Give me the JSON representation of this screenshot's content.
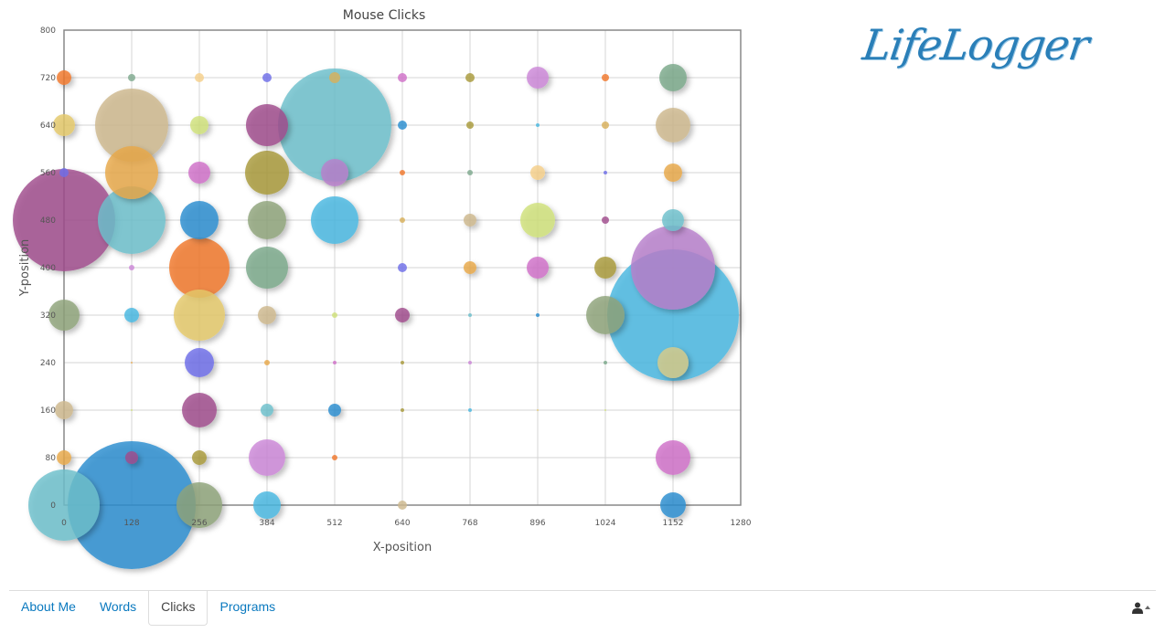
{
  "nav": {
    "tabs": [
      {
        "label": "About Me",
        "active": false
      },
      {
        "label": "Words",
        "active": false
      },
      {
        "label": "Clicks",
        "active": true
      },
      {
        "label": "Programs",
        "active": false
      }
    ],
    "user_icon": "user-icon"
  },
  "logo": {
    "text": "LifeLogger",
    "color": "#2a7fb8"
  },
  "chart_data": {
    "type": "scatter",
    "title": "Mouse Clicks",
    "xlabel": "X-position",
    "ylabel": "Y-position",
    "xlim": [
      0,
      1280
    ],
    "ylim": [
      0,
      800
    ],
    "xticks": [
      0,
      128,
      256,
      384,
      512,
      640,
      768,
      896,
      1024,
      1152,
      1280
    ],
    "yticks": [
      0,
      80,
      160,
      240,
      320,
      400,
      480,
      560,
      640,
      720,
      800
    ],
    "grid": true,
    "points": [
      {
        "x": 0,
        "y": 720,
        "size": 8,
        "color": "#f0782c"
      },
      {
        "x": 128,
        "y": 720,
        "size": 4,
        "color": "#7faa8f"
      },
      {
        "x": 256,
        "y": 720,
        "size": 5,
        "color": "#f5cf8a"
      },
      {
        "x": 384,
        "y": 720,
        "size": 5,
        "color": "#6e6ee8"
      },
      {
        "x": 512,
        "y": 720,
        "size": 6,
        "color": "#d8b05a"
      },
      {
        "x": 640,
        "y": 720,
        "size": 5,
        "color": "#d070c8"
      },
      {
        "x": 768,
        "y": 720,
        "size": 5,
        "color": "#a89a3a"
      },
      {
        "x": 896,
        "y": 720,
        "size": 12,
        "color": "#cc88d8"
      },
      {
        "x": 1024,
        "y": 720,
        "size": 4,
        "color": "#f0782c"
      },
      {
        "x": 1152,
        "y": 720,
        "size": 15,
        "color": "#7aa88a"
      },
      {
        "x": 0,
        "y": 640,
        "size": 12,
        "color": "#e4c86a"
      },
      {
        "x": 128,
        "y": 640,
        "size": 40,
        "color": "#cdb88e"
      },
      {
        "x": 256,
        "y": 640,
        "size": 10,
        "color": "#cfe07a"
      },
      {
        "x": 384,
        "y": 640,
        "size": 23,
        "color": "#a04c8c"
      },
      {
        "x": 512,
        "y": 640,
        "size": 62,
        "color": "#6ec0cc"
      },
      {
        "x": 640,
        "y": 640,
        "size": 5,
        "color": "#2a8ed0"
      },
      {
        "x": 768,
        "y": 640,
        "size": 4,
        "color": "#a89a3a"
      },
      {
        "x": 896,
        "y": 640,
        "size": 2,
        "color": "#4ab8e0"
      },
      {
        "x": 1024,
        "y": 640,
        "size": 4,
        "color": "#d8b05a"
      },
      {
        "x": 1152,
        "y": 640,
        "size": 19,
        "color": "#cdb88e"
      },
      {
        "x": 0,
        "y": 560,
        "size": 5,
        "color": "#6e6ee8"
      },
      {
        "x": 128,
        "y": 560,
        "size": 29,
        "color": "#e8a84a"
      },
      {
        "x": 256,
        "y": 560,
        "size": 12,
        "color": "#d070c8"
      },
      {
        "x": 384,
        "y": 560,
        "size": 24,
        "color": "#a89a3a"
      },
      {
        "x": 512,
        "y": 560,
        "size": 15,
        "color": "#b880cc"
      },
      {
        "x": 640,
        "y": 560,
        "size": 3,
        "color": "#f0782c"
      },
      {
        "x": 768,
        "y": 560,
        "size": 3,
        "color": "#7faa8f"
      },
      {
        "x": 896,
        "y": 560,
        "size": 8,
        "color": "#f5cf8a"
      },
      {
        "x": 1024,
        "y": 560,
        "size": 2,
        "color": "#6e6ee8"
      },
      {
        "x": 1152,
        "y": 560,
        "size": 10,
        "color": "#e8a84a"
      },
      {
        "x": 0,
        "y": 480,
        "size": 56,
        "color": "#a04c8c"
      },
      {
        "x": 128,
        "y": 480,
        "size": 37,
        "color": "#6ec0cc"
      },
      {
        "x": 256,
        "y": 480,
        "size": 21,
        "color": "#2a8ed0"
      },
      {
        "x": 384,
        "y": 480,
        "size": 21,
        "color": "#8fa47a"
      },
      {
        "x": 512,
        "y": 480,
        "size": 26,
        "color": "#4ab8e0"
      },
      {
        "x": 640,
        "y": 480,
        "size": 3,
        "color": "#d8b05a"
      },
      {
        "x": 768,
        "y": 480,
        "size": 7,
        "color": "#cdb88e"
      },
      {
        "x": 896,
        "y": 480,
        "size": 19,
        "color": "#cfe07a"
      },
      {
        "x": 1024,
        "y": 480,
        "size": 4,
        "color": "#a04c8c"
      },
      {
        "x": 1152,
        "y": 480,
        "size": 12,
        "color": "#6ec0cc"
      },
      {
        "x": 128,
        "y": 400,
        "size": 3,
        "color": "#cc88d8"
      },
      {
        "x": 256,
        "y": 400,
        "size": 33,
        "color": "#f0782c"
      },
      {
        "x": 384,
        "y": 400,
        "size": 23,
        "color": "#7aa88a"
      },
      {
        "x": 640,
        "y": 400,
        "size": 5,
        "color": "#6e6ee8"
      },
      {
        "x": 768,
        "y": 400,
        "size": 7,
        "color": "#e8a84a"
      },
      {
        "x": 896,
        "y": 400,
        "size": 12,
        "color": "#d070c8"
      },
      {
        "x": 1024,
        "y": 400,
        "size": 12,
        "color": "#a89a3a"
      },
      {
        "x": 1152,
        "y": 400,
        "size": 46,
        "color": "#b880cc"
      },
      {
        "x": 0,
        "y": 320,
        "size": 17,
        "color": "#8fa47a"
      },
      {
        "x": 128,
        "y": 320,
        "size": 8,
        "color": "#4ab8e0"
      },
      {
        "x": 256,
        "y": 320,
        "size": 28,
        "color": "#e4c86a"
      },
      {
        "x": 384,
        "y": 320,
        "size": 10,
        "color": "#cdb88e"
      },
      {
        "x": 512,
        "y": 320,
        "size": 3,
        "color": "#cfe07a"
      },
      {
        "x": 640,
        "y": 320,
        "size": 8,
        "color": "#a04c8c"
      },
      {
        "x": 768,
        "y": 320,
        "size": 2,
        "color": "#6ec0cc"
      },
      {
        "x": 896,
        "y": 320,
        "size": 2,
        "color": "#2a8ed0"
      },
      {
        "x": 1024,
        "y": 320,
        "size": 21,
        "color": "#8fa47a"
      },
      {
        "x": 1152,
        "y": 320,
        "size": 72,
        "color": "#4ab8e0"
      },
      {
        "x": 128,
        "y": 240,
        "size": 1,
        "color": "#e8a84a"
      },
      {
        "x": 256,
        "y": 240,
        "size": 16,
        "color": "#6e6ee8"
      },
      {
        "x": 384,
        "y": 240,
        "size": 3,
        "color": "#e8a84a"
      },
      {
        "x": 512,
        "y": 240,
        "size": 2,
        "color": "#d070c8"
      },
      {
        "x": 640,
        "y": 240,
        "size": 2,
        "color": "#a89a3a"
      },
      {
        "x": 768,
        "y": 240,
        "size": 2,
        "color": "#cc88d8"
      },
      {
        "x": 1024,
        "y": 240,
        "size": 2,
        "color": "#7aa88a"
      },
      {
        "x": 1152,
        "y": 240,
        "size": 17,
        "color": "#d8cc8a"
      },
      {
        "x": 0,
        "y": 160,
        "size": 10,
        "color": "#cdb88e"
      },
      {
        "x": 128,
        "y": 160,
        "size": 1,
        "color": "#cfe07a"
      },
      {
        "x": 256,
        "y": 160,
        "size": 19,
        "color": "#a04c8c"
      },
      {
        "x": 384,
        "y": 160,
        "size": 7,
        "color": "#6ec0cc"
      },
      {
        "x": 512,
        "y": 160,
        "size": 7,
        "color": "#2a8ed0"
      },
      {
        "x": 640,
        "y": 160,
        "size": 2,
        "color": "#a89a3a"
      },
      {
        "x": 768,
        "y": 160,
        "size": 2,
        "color": "#4ab8e0"
      },
      {
        "x": 896,
        "y": 160,
        "size": 1,
        "color": "#e4c86a"
      },
      {
        "x": 1024,
        "y": 160,
        "size": 1,
        "color": "#cfe07a"
      },
      {
        "x": 0,
        "y": 80,
        "size": 8,
        "color": "#e8a84a"
      },
      {
        "x": 128,
        "y": 80,
        "size": 7,
        "color": "#a04c8c"
      },
      {
        "x": 256,
        "y": 80,
        "size": 8,
        "color": "#a89a3a"
      },
      {
        "x": 384,
        "y": 80,
        "size": 20,
        "color": "#cc88d8"
      },
      {
        "x": 512,
        "y": 80,
        "size": 3,
        "color": "#f0782c"
      },
      {
        "x": 1152,
        "y": 80,
        "size": 19,
        "color": "#d070c8"
      },
      {
        "x": 0,
        "y": 0,
        "size": 39,
        "color": "#6ec0cc"
      },
      {
        "x": 128,
        "y": 0,
        "size": 70,
        "color": "#2a8ed0"
      },
      {
        "x": 256,
        "y": 0,
        "size": 25,
        "color": "#8fa47a"
      },
      {
        "x": 384,
        "y": 0,
        "size": 15,
        "color": "#4ab8e0"
      },
      {
        "x": 640,
        "y": 0,
        "size": 5,
        "color": "#cdb88e"
      },
      {
        "x": 1152,
        "y": 0,
        "size": 14,
        "color": "#2a8ed0"
      }
    ]
  }
}
